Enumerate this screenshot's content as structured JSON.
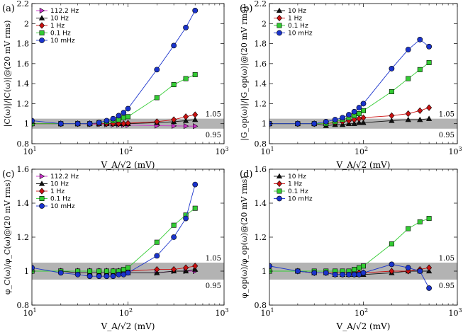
{
  "chart_data": [
    {
      "id": "a",
      "type": "line",
      "panel_label": "(a)",
      "xlabel": "V_A/√2 (mV)",
      "ylabel": "|C(ω)|/|C(ω)|@(20 mV rms)",
      "xscale": "log",
      "xlim": [
        10,
        1000
      ],
      "ylim": [
        0.8,
        2.2
      ],
      "yticks": [
        0.8,
        1,
        1.2,
        1.4,
        1.6,
        1.8,
        2,
        2.2
      ],
      "ytick_labels": [
        "0.8",
        "1",
        "1.2",
        "1.4",
        "1.6",
        "1.8",
        "2",
        "2.2"
      ],
      "xtick_labels": [
        "10",
        "10",
        "10"
      ],
      "xtick_exps": [
        "1",
        "2",
        "3"
      ],
      "band": {
        "low": 0.95,
        "high": 1.05,
        "low_label": "0.95",
        "high_label": "1.05"
      },
      "legend_position": "top-left",
      "series": [
        {
          "name": "112.2 Hz",
          "marker": "triangle-right",
          "color": "#cc33cc",
          "x": [
            10,
            20,
            30,
            40,
            50,
            60,
            70,
            80,
            90,
            100,
            200,
            300,
            400,
            500
          ],
          "values": [
            1.0,
            1.0,
            1.0,
            0.995,
            0.995,
            0.993,
            0.99,
            0.99,
            0.988,
            0.986,
            0.98,
            0.978,
            0.976,
            0.975
          ]
        },
        {
          "name": "10 Hz",
          "marker": "triangle-up",
          "color": "#111111",
          "x": [
            10,
            20,
            30,
            40,
            50,
            60,
            70,
            80,
            90,
            100,
            200,
            300,
            400,
            500
          ],
          "values": [
            1.0,
            1.0,
            1.0,
            1.0,
            1.0,
            1.0,
            1.0,
            1.0,
            1.0,
            1.0,
            1.01,
            1.02,
            1.03,
            1.04
          ]
        },
        {
          "name": "1 Hz",
          "marker": "diamond",
          "color": "#cc1111",
          "x": [
            10,
            20,
            30,
            40,
            50,
            60,
            70,
            80,
            90,
            100,
            200,
            300,
            400,
            500
          ],
          "values": [
            1.0,
            1.0,
            1.0,
            1.0,
            1.0,
            1.0,
            1.0,
            1.0,
            1.0,
            1.005,
            1.02,
            1.04,
            1.07,
            1.09
          ]
        },
        {
          "name": "0.1 Hz",
          "marker": "square",
          "color": "#33cc33",
          "x": [
            10,
            20,
            30,
            40,
            50,
            60,
            70,
            80,
            90,
            100,
            200,
            300,
            400,
            500
          ],
          "values": [
            1.0,
            1.0,
            1.0,
            1.0,
            1.01,
            1.02,
            1.03,
            1.04,
            1.06,
            1.07,
            1.26,
            1.39,
            1.45,
            1.49
          ]
        },
        {
          "name": "10 mHz",
          "marker": "circle",
          "color": "#1a33cc",
          "x": [
            10,
            20,
            30,
            40,
            50,
            60,
            70,
            80,
            90,
            100,
            200,
            300,
            400,
            500
          ],
          "values": [
            1.03,
            1.0,
            1.0,
            1.0,
            1.01,
            1.03,
            1.05,
            1.08,
            1.11,
            1.15,
            1.54,
            1.78,
            1.96,
            2.13
          ]
        }
      ]
    },
    {
      "id": "b",
      "type": "line",
      "panel_label": "(b)",
      "xlabel": "V_A/√2 (mV)",
      "ylabel": "|G_op(ω)|/|G_op(ω)|@(20 mV rms)",
      "xscale": "log",
      "xlim": [
        10,
        1000
      ],
      "ylim": [
        0.8,
        2.2
      ],
      "yticks": [
        0.8,
        1,
        1.2,
        1.4,
        1.6,
        1.8,
        2,
        2.2
      ],
      "ytick_labels": [
        "0.8",
        "1",
        "1.2",
        "1.4",
        "1.6",
        "1.8",
        "2",
        "2.2"
      ],
      "xtick_labels": [
        "10",
        "10",
        "10"
      ],
      "xtick_exps": [
        "1",
        "2",
        "3"
      ],
      "band": {
        "low": 0.95,
        "high": 1.05,
        "low_label": "0.95",
        "high_label": "1.05"
      },
      "legend_position": "top-left",
      "series": [
        {
          "name": "10 Hz",
          "marker": "triangle-up",
          "color": "#111111",
          "x": [
            10,
            20,
            30,
            40,
            50,
            60,
            70,
            80,
            90,
            100,
            200,
            300,
            400,
            500
          ],
          "values": [
            1.0,
            1.0,
            1.0,
            0.98,
            0.99,
            0.99,
            1.0,
            1.0,
            1.01,
            1.01,
            1.03,
            1.04,
            1.04,
            1.05
          ]
        },
        {
          "name": "1 Hz",
          "marker": "diamond",
          "color": "#cc1111",
          "x": [
            10,
            20,
            30,
            40,
            50,
            60,
            70,
            80,
            90,
            100,
            200,
            300,
            400,
            500
          ],
          "values": [
            1.0,
            1.0,
            1.0,
            1.0,
            1.01,
            1.02,
            1.03,
            1.04,
            1.05,
            1.06,
            1.08,
            1.1,
            1.13,
            1.16
          ]
        },
        {
          "name": "0.1 Hz",
          "marker": "square",
          "color": "#33cc33",
          "x": [
            10,
            20,
            30,
            40,
            50,
            60,
            70,
            80,
            90,
            100,
            200,
            300,
            400,
            500
          ],
          "values": [
            1.0,
            1.0,
            1.0,
            1.0,
            1.02,
            1.04,
            1.06,
            1.08,
            1.1,
            1.13,
            1.32,
            1.45,
            1.54,
            1.61
          ]
        },
        {
          "name": "10 mHz",
          "marker": "circle",
          "color": "#1a33cc",
          "x": [
            10,
            20,
            30,
            40,
            50,
            60,
            70,
            80,
            90,
            100,
            200,
            300,
            400,
            500
          ],
          "values": [
            1.0,
            1.0,
            1.0,
            1.02,
            1.04,
            1.06,
            1.09,
            1.12,
            1.16,
            1.2,
            1.55,
            1.74,
            1.84,
            1.77
          ]
        }
      ]
    },
    {
      "id": "c",
      "type": "line",
      "panel_label": "(c)",
      "xlabel": "V_A/√2 (mV)",
      "ylabel": "φ_C(ω)/φ_C(ω)@(20 mV rms)",
      "xscale": "log",
      "xlim": [
        10,
        1000
      ],
      "ylim": [
        0.8,
        1.6
      ],
      "yticks": [
        0.8,
        1,
        1.2,
        1.4,
        1.6
      ],
      "ytick_labels": [
        "0.8",
        "1",
        "1.2",
        "1.4",
        "1.6"
      ],
      "xtick_labels": [
        "10",
        "10",
        "10"
      ],
      "xtick_exps": [
        "1",
        "2",
        "3"
      ],
      "band": {
        "low": 0.95,
        "high": 1.05,
        "low_label": "0.95",
        "high_label": "1.05"
      },
      "legend_position": "top-left",
      "series": [
        {
          "name": "112.2 Hz",
          "marker": "triangle-right",
          "color": "#cc33cc",
          "x": [
            10,
            20,
            30,
            40,
            50,
            60,
            70,
            80,
            90,
            100,
            200,
            300,
            400,
            500
          ],
          "values": [
            1.0,
            1.0,
            0.99,
            0.99,
            0.99,
            0.99,
            0.99,
            0.99,
            0.99,
            0.99,
            0.99,
            1.0,
            1.0,
            1.0
          ]
        },
        {
          "name": "10 Hz",
          "marker": "triangle-up",
          "color": "#111111",
          "x": [
            10,
            20,
            30,
            40,
            50,
            60,
            70,
            80,
            90,
            100,
            200,
            300,
            400,
            500
          ],
          "values": [
            1.0,
            1.0,
            0.99,
            0.99,
            0.99,
            0.99,
            0.99,
            0.99,
            0.99,
            0.99,
            0.99,
            1.0,
            1.0,
            1.01
          ]
        },
        {
          "name": "1 Hz",
          "marker": "diamond",
          "color": "#cc1111",
          "x": [
            10,
            20,
            30,
            40,
            50,
            60,
            70,
            80,
            90,
            100,
            200,
            300,
            400,
            500
          ],
          "values": [
            1.0,
            1.0,
            1.0,
            1.0,
            1.0,
            1.0,
            1.0,
            1.0,
            1.0,
            1.0,
            1.01,
            1.01,
            1.02,
            1.03
          ]
        },
        {
          "name": "0.1 Hz",
          "marker": "square",
          "color": "#33cc33",
          "x": [
            10,
            20,
            30,
            40,
            50,
            60,
            70,
            80,
            90,
            100,
            200,
            300,
            400,
            500
          ],
          "values": [
            1.0,
            1.0,
            1.0,
            1.0,
            1.0,
            1.0,
            1.0,
            1.0,
            1.01,
            1.02,
            1.17,
            1.27,
            1.33,
            1.37
          ]
        },
        {
          "name": "10 mHz",
          "marker": "circle",
          "color": "#1a33cc",
          "x": [
            10,
            20,
            30,
            40,
            50,
            60,
            70,
            80,
            90,
            100,
            200,
            300,
            400,
            500
          ],
          "values": [
            1.02,
            0.99,
            0.98,
            0.97,
            0.97,
            0.97,
            0.97,
            0.98,
            0.98,
            0.99,
            1.09,
            1.2,
            1.31,
            1.51
          ]
        }
      ]
    },
    {
      "id": "d",
      "type": "line",
      "panel_label": "(d)",
      "xlabel": "V_A/√2 (mV)",
      "ylabel": "φ_op(ω)/φ_op(ω)@(20 mV rms)",
      "xscale": "log",
      "xlim": [
        10,
        1000
      ],
      "ylim": [
        0.8,
        1.6
      ],
      "yticks": [
        0.8,
        1,
        1.2,
        1.4,
        1.6
      ],
      "ytick_labels": [
        "0.8",
        "1",
        "1.2",
        "1.4",
        "1.6"
      ],
      "xtick_labels": [
        "10",
        "10",
        "10"
      ],
      "xtick_exps": [
        "1",
        "2",
        "3"
      ],
      "band": {
        "low": 0.95,
        "high": 1.05,
        "low_label": "0.95",
        "high_label": "1.05"
      },
      "legend_position": "top-left",
      "series": [
        {
          "name": "10 Hz",
          "marker": "triangle-up",
          "color": "#111111",
          "x": [
            10,
            20,
            30,
            40,
            50,
            60,
            70,
            80,
            90,
            100,
            200,
            300,
            400,
            500
          ],
          "values": [
            1.0,
            1.0,
            0.99,
            0.99,
            0.98,
            0.98,
            0.98,
            0.98,
            0.98,
            0.98,
            0.99,
            1.0,
            1.0,
            1.0
          ]
        },
        {
          "name": "1 Hz",
          "marker": "diamond",
          "color": "#cc1111",
          "x": [
            10,
            20,
            30,
            40,
            50,
            60,
            70,
            80,
            90,
            100,
            200,
            300,
            400,
            500
          ],
          "values": [
            1.0,
            1.0,
            0.99,
            0.99,
            0.99,
            0.99,
            0.99,
            0.99,
            0.99,
            0.99,
            1.0,
            1.0,
            1.01,
            1.02
          ]
        },
        {
          "name": "0.1 Hz",
          "marker": "square",
          "color": "#33cc33",
          "x": [
            10,
            20,
            30,
            40,
            50,
            60,
            70,
            80,
            90,
            100,
            200,
            300,
            400,
            500
          ],
          "values": [
            1.0,
            1.0,
            1.0,
            1.0,
            1.0,
            1.0,
            1.0,
            1.01,
            1.02,
            1.03,
            1.16,
            1.25,
            1.29,
            1.31
          ]
        },
        {
          "name": "10 mHz",
          "marker": "circle",
          "color": "#1a33cc",
          "x": [
            10,
            20,
            30,
            40,
            50,
            60,
            70,
            80,
            90,
            100,
            200,
            300,
            400,
            500
          ],
          "values": [
            1.03,
            1.0,
            0.99,
            0.99,
            0.98,
            0.98,
            0.98,
            0.98,
            0.98,
            0.99,
            1.04,
            1.02,
            1.0,
            0.9
          ]
        }
      ]
    }
  ]
}
